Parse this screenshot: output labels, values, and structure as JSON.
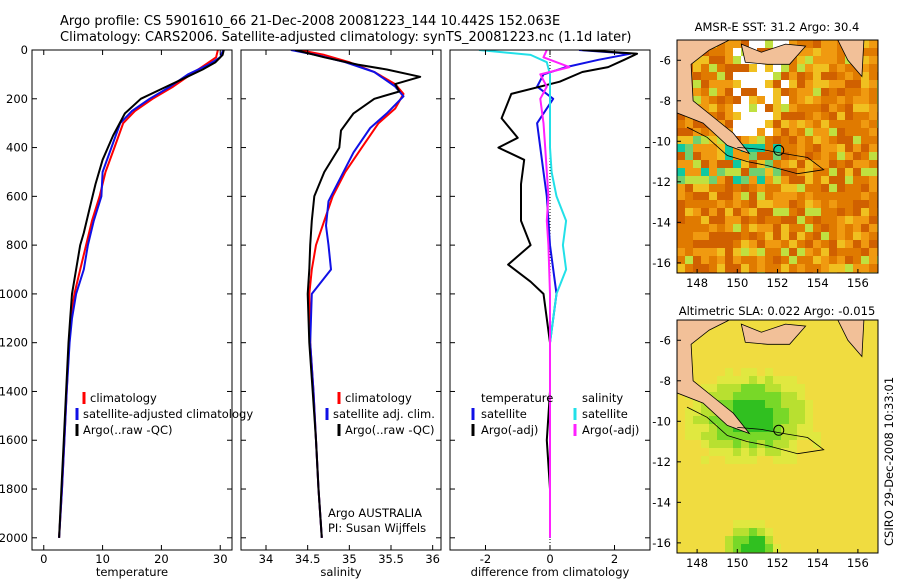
{
  "header": {
    "line1": "Argo profile: CS 5901610_66 21-Dec-2008 20081223_144 10.442S 152.063E",
    "line2": "Climatology: CARS2006. Satellite-adjusted climatology: synTS_20081223.nc (1.1d later)"
  },
  "colors": {
    "climatology": "#ff0000",
    "satellite": "#1010e6",
    "argo": "#000000",
    "sat_salinity": "#22e0e8",
    "argo_salinity": "#ff20ff",
    "land": "#f2c098"
  },
  "chart_data": [
    {
      "id": "temperature",
      "type": "line",
      "xlabel": "temperature",
      "ylabel": "",
      "xlim": [
        -2,
        32
      ],
      "ylim": [
        2050,
        0
      ],
      "xticks": [
        0,
        10,
        20,
        30
      ],
      "yticks": [
        0,
        200,
        400,
        600,
        800,
        1000,
        1200,
        1400,
        1600,
        1800,
        2000
      ],
      "legend": [
        "climatology",
        "satellite-adjusted climatology",
        "Argo(..raw -QC)"
      ],
      "series": [
        {
          "name": "climatology",
          "color": "climatology",
          "points": [
            [
              29.6,
              0
            ],
            [
              29.3,
              30
            ],
            [
              27.5,
              60
            ],
            [
              25,
              100
            ],
            [
              22,
              150
            ],
            [
              18.5,
              200
            ],
            [
              15.5,
              250
            ],
            [
              13.5,
              300
            ],
            [
              12,
              400
            ],
            [
              10.5,
              500
            ],
            [
              9.5,
              600
            ],
            [
              8.2,
              700
            ],
            [
              7.2,
              800
            ],
            [
              6.2,
              900
            ],
            [
              5.2,
              1000
            ],
            [
              4.6,
              1100
            ],
            [
              4.3,
              1200
            ],
            [
              3.9,
              1400
            ],
            [
              3.5,
              1600
            ],
            [
              3.1,
              1800
            ],
            [
              2.6,
              2000
            ]
          ]
        },
        {
          "name": "satellite",
          "color": "satellite",
          "points": [
            [
              30.5,
              0
            ],
            [
              30,
              30
            ],
            [
              28,
              60
            ],
            [
              24.5,
              100
            ],
            [
              21.5,
              150
            ],
            [
              18,
              200
            ],
            [
              15,
              250
            ],
            [
              13,
              300
            ],
            [
              11.5,
              400
            ],
            [
              10,
              500
            ],
            [
              9.8,
              600
            ],
            [
              8.5,
              700
            ],
            [
              7.5,
              800
            ],
            [
              6.8,
              900
            ],
            [
              5.5,
              1000
            ],
            [
              4.8,
              1100
            ],
            [
              4.4,
              1200
            ],
            [
              3.9,
              1400
            ],
            [
              3.5,
              1600
            ],
            [
              3.1,
              1800
            ],
            [
              2.6,
              2000
            ]
          ]
        },
        {
          "name": "Argo",
          "color": "argo",
          "points": [
            [
              30.6,
              0
            ],
            [
              30.4,
              20
            ],
            [
              29.2,
              50
            ],
            [
              27,
              80
            ],
            [
              23.5,
              120
            ],
            [
              20,
              160
            ],
            [
              16.5,
              200
            ],
            [
              13.8,
              260
            ],
            [
              11.8,
              350
            ],
            [
              10,
              450
            ],
            [
              8.8,
              550
            ],
            [
              7.8,
              650
            ],
            [
              6.8,
              750
            ],
            [
              6.2,
              800
            ],
            [
              5.5,
              900
            ],
            [
              4.8,
              1000
            ],
            [
              4.5,
              1100
            ],
            [
              4.2,
              1200
            ],
            [
              3.8,
              1400
            ],
            [
              3.4,
              1600
            ],
            [
              3,
              1800
            ],
            [
              2.6,
              2000
            ]
          ]
        }
      ]
    },
    {
      "id": "salinity",
      "type": "line",
      "xlabel": "salinity",
      "xlim": [
        33.7,
        36.1
      ],
      "ylim": [
        2050,
        0
      ],
      "xticks": [
        34,
        34.5,
        35,
        35.5,
        36
      ],
      "legend": [
        "climatology",
        "satellite adj. clim.",
        "Argo(..raw -QC)"
      ],
      "annotation_1": "Argo AUSTRALIA",
      "annotation_2": "PI: Susan Wijffels",
      "series": [
        {
          "name": "climatology",
          "color": "climatology",
          "points": [
            [
              34.4,
              0
            ],
            [
              34.7,
              20
            ],
            [
              35.0,
              50
            ],
            [
              35.3,
              90
            ],
            [
              35.55,
              140
            ],
            [
              35.65,
              180
            ],
            [
              35.55,
              240
            ],
            [
              35.35,
              300
            ],
            [
              35.15,
              400
            ],
            [
              34.95,
              500
            ],
            [
              34.8,
              600
            ],
            [
              34.7,
              700
            ],
            [
              34.6,
              800
            ],
            [
              34.55,
              900
            ],
            [
              34.52,
              1000
            ],
            [
              34.53,
              1200
            ],
            [
              34.57,
              1400
            ],
            [
              34.6,
              1600
            ],
            [
              34.63,
              1800
            ],
            [
              34.67,
              2000
            ]
          ]
        },
        {
          "name": "satellite",
          "color": "satellite",
          "points": [
            [
              34.3,
              0
            ],
            [
              34.6,
              20
            ],
            [
              34.95,
              50
            ],
            [
              35.3,
              90
            ],
            [
              35.55,
              150
            ],
            [
              35.65,
              190
            ],
            [
              35.45,
              260
            ],
            [
              35.25,
              320
            ],
            [
              35.05,
              420
            ],
            [
              34.9,
              520
            ],
            [
              34.75,
              620
            ],
            [
              34.72,
              720
            ],
            [
              34.75,
              800
            ],
            [
              34.78,
              900
            ],
            [
              34.55,
              1000
            ],
            [
              34.53,
              1200
            ],
            [
              34.57,
              1400
            ],
            [
              34.6,
              1600
            ],
            [
              34.63,
              1800
            ],
            [
              34.67,
              2000
            ]
          ]
        },
        {
          "name": "Argo",
          "color": "argo",
          "points": [
            [
              34.35,
              0
            ],
            [
              34.7,
              30
            ],
            [
              35.1,
              60
            ],
            [
              35.45,
              80
            ],
            [
              35.85,
              110
            ],
            [
              35.55,
              140
            ],
            [
              35.6,
              170
            ],
            [
              35.3,
              200
            ],
            [
              35.05,
              260
            ],
            [
              34.9,
              330
            ],
            [
              34.88,
              400
            ],
            [
              34.7,
              500
            ],
            [
              34.58,
              600
            ],
            [
              34.55,
              700
            ],
            [
              34.53,
              800
            ],
            [
              34.52,
              900
            ],
            [
              34.5,
              1000
            ],
            [
              34.52,
              1200
            ],
            [
              34.56,
              1400
            ],
            [
              34.6,
              1600
            ],
            [
              34.63,
              1800
            ],
            [
              34.67,
              2000
            ]
          ]
        }
      ]
    },
    {
      "id": "difference",
      "type": "line",
      "xlabel": "difference from climatology",
      "xlim": [
        -3.1,
        3.1
      ],
      "ylim": [
        2050,
        0
      ],
      "xticks": [
        -2,
        0,
        2
      ],
      "legend_temperature": "temperature",
      "legend_salinity": "salinity",
      "legend_labels": [
        "satellite",
        "Argo(-adj)",
        "satellite",
        "Argo(-adj)"
      ],
      "series": [
        {
          "name": "temperature satellite",
          "color": "satellite",
          "points": [
            [
              0.9,
              0
            ],
            [
              2.5,
              15
            ],
            [
              1.5,
              40
            ],
            [
              0.5,
              70
            ],
            [
              -0.2,
              100
            ],
            [
              -0.4,
              150
            ],
            [
              0.1,
              200
            ],
            [
              -0.4,
              300
            ],
            [
              -0.3,
              400
            ],
            [
              -0.2,
              500
            ],
            [
              -0.1,
              600
            ],
            [
              0,
              800
            ],
            [
              0.2,
              1000
            ],
            [
              0,
              1200
            ],
            [
              0,
              1400
            ],
            [
              0,
              1600
            ],
            [
              0,
              1800
            ],
            [
              0,
              2000
            ]
          ]
        },
        {
          "name": "temperature Argo",
          "color": "argo",
          "points": [
            [
              1.0,
              0
            ],
            [
              2.7,
              15
            ],
            [
              2.3,
              40
            ],
            [
              1.8,
              70
            ],
            [
              1.0,
              90
            ],
            [
              0.3,
              130
            ],
            [
              -1.2,
              180
            ],
            [
              -1.5,
              280
            ],
            [
              -1.0,
              360
            ],
            [
              -1.6,
              400
            ],
            [
              -0.8,
              450
            ],
            [
              -0.9,
              550
            ],
            [
              -0.9,
              700
            ],
            [
              -0.6,
              800
            ],
            [
              -1.3,
              880
            ],
            [
              -0.6,
              950
            ],
            [
              -0.2,
              1000
            ],
            [
              0,
              1200
            ],
            [
              0,
              1400
            ],
            [
              -0.1,
              1600
            ],
            [
              0,
              1800
            ],
            [
              0,
              2000
            ]
          ]
        },
        {
          "name": "salinity satellite",
          "color": "sat_salinity",
          "points": [
            [
              -2.2,
              0
            ],
            [
              -0.6,
              20
            ],
            [
              -0.1,
              50
            ],
            [
              0,
              100
            ],
            [
              0,
              200
            ],
            [
              0,
              300
            ],
            [
              0,
              400
            ],
            [
              0.05,
              500
            ],
            [
              0.2,
              600
            ],
            [
              0.5,
              700
            ],
            [
              0.4,
              800
            ],
            [
              0.5,
              900
            ],
            [
              0.2,
              1000
            ],
            [
              0,
              1200
            ],
            [
              0,
              1400
            ],
            [
              0,
              1600
            ],
            [
              0,
              1800
            ],
            [
              0,
              2000
            ]
          ]
        },
        {
          "name": "salinity Argo",
          "color": "argo_salinity",
          "points": [
            [
              -0.1,
              0
            ],
            [
              -0.2,
              30
            ],
            [
              0.6,
              70
            ],
            [
              -0.3,
              100
            ],
            [
              -0.1,
              150
            ],
            [
              -0.3,
              200
            ],
            [
              -0.2,
              300
            ],
            [
              -0.15,
              400
            ],
            [
              -0.1,
              500
            ],
            [
              -0.05,
              600
            ],
            [
              -0.1,
              700
            ],
            [
              -0.05,
              800
            ],
            [
              0,
              1000
            ],
            [
              0,
              1200
            ],
            [
              0,
              1400
            ],
            [
              0,
              1600
            ],
            [
              0,
              1800
            ],
            [
              0,
              2000
            ]
          ]
        }
      ]
    },
    {
      "id": "sst_map",
      "type": "heatmap",
      "title": "AMSR-E SST: 31.2 Argo: 30.4",
      "xlim": [
        147,
        157
      ],
      "ylim": [
        -16.5,
        -5
      ],
      "xticks": [
        148,
        150,
        152,
        154,
        156
      ],
      "yticks": [
        -6,
        -8,
        -10,
        -12,
        -14,
        -16
      ],
      "float_lon": 152.063,
      "float_lat": -10.442
    },
    {
      "id": "sla_map",
      "type": "heatmap",
      "title": "Altimetric SLA: 0.022 Argo: -0.015",
      "xlim": [
        147,
        157
      ],
      "ylim": [
        -16.5,
        -5
      ],
      "xticks": [
        148,
        150,
        152,
        154,
        156
      ],
      "yticks": [
        -6,
        -8,
        -10,
        -12,
        -14,
        -16
      ],
      "float_lon": 152.063,
      "float_lat": -10.442
    }
  ],
  "footer": {
    "side_stamp": "CSIRO 29-Dec-2008 10:33:01"
  }
}
